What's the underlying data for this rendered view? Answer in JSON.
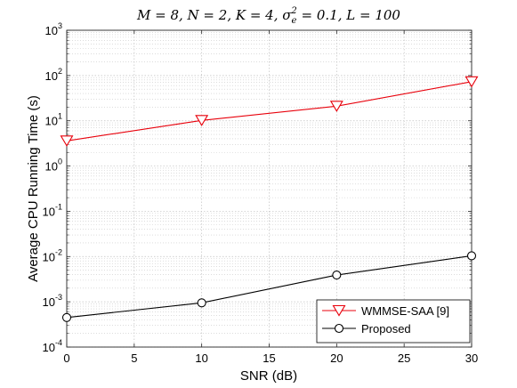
{
  "chart_data": {
    "type": "line",
    "title": "M = 8, N = 2, K = 4, σ_e² = 0.1, L = 100",
    "title_parts": {
      "prefix": "M = 8, N = 2, K = 4, σ",
      "sub": "e",
      "sup": "2",
      "suffix": " = 0.1, L = 100"
    },
    "xlabel": "SNR (dB)",
    "ylabel": "Average CPU Running Time (s)",
    "xlim": [
      0,
      30
    ],
    "ylim": [
      0.0001,
      1000
    ],
    "yscale": "log",
    "grid": true,
    "minor_grid": true,
    "legend_position": "bottom-right",
    "x_ticks": [
      "0",
      "5",
      "10",
      "15",
      "20",
      "25",
      "30"
    ],
    "y_ticks": [
      {
        "base": "10",
        "exp": "-4"
      },
      {
        "base": "10",
        "exp": "-3"
      },
      {
        "base": "10",
        "exp": "-2"
      },
      {
        "base": "10",
        "exp": "-1"
      },
      {
        "base": "10",
        "exp": "0"
      },
      {
        "base": "10",
        "exp": "1"
      },
      {
        "base": "10",
        "exp": "2"
      },
      {
        "base": "10",
        "exp": "3"
      }
    ],
    "series": [
      {
        "name": "WMMSE-SAA [9]",
        "color": "#e8000b",
        "marker": "triangle-down",
        "x": [
          0,
          10,
          20,
          30
        ],
        "y": [
          3.6,
          10.2,
          21.0,
          73.0
        ]
      },
      {
        "name": "Proposed",
        "color": "#000000",
        "marker": "circle",
        "x": [
          0,
          10,
          20,
          30
        ],
        "y": [
          0.00045,
          0.00095,
          0.0039,
          0.0104
        ]
      }
    ]
  }
}
